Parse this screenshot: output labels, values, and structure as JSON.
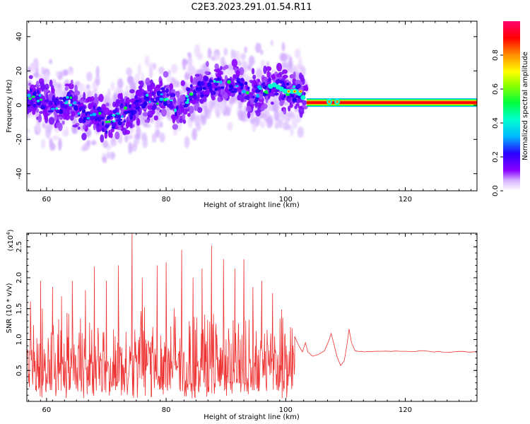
{
  "title": "C2E3.2023.291.01.54.R11",
  "chart_data": [
    {
      "type": "heatmap",
      "xlabel": "Height of straight line (km)",
      "ylabel": "Frequency (Hz)",
      "xlim": [
        56.7,
        132
      ],
      "ylim": [
        -50,
        49
      ],
      "xticks": [
        60,
        80,
        100,
        120
      ],
      "yticks": [
        -40,
        -20,
        0,
        20,
        40
      ],
      "colorbar": {
        "label": "Normalized spectral amplitude",
        "range": [
          0.0,
          1.0
        ],
        "ticks": [
          "0.0",
          "0.2",
          "0.4",
          "0.6",
          "0.8"
        ],
        "colors": [
          "#ffffff",
          "#c07cff",
          "#8a00ff",
          "#2a00ff",
          "#00b8ff",
          "#00ffd0",
          "#00ff3c",
          "#c8ff00",
          "#ffff00",
          "#ff9000",
          "#ff0000",
          "#ff0070"
        ]
      },
      "ridge": [
        {
          "km": 57,
          "hz": 5
        },
        {
          "km": 60,
          "hz": 2
        },
        {
          "km": 62,
          "hz": -2
        },
        {
          "km": 64,
          "hz": 3
        },
        {
          "km": 66,
          "hz": -6
        },
        {
          "km": 68,
          "hz": -4
        },
        {
          "km": 70,
          "hz": -12
        },
        {
          "km": 72,
          "hz": -6
        },
        {
          "km": 74,
          "hz": -3
        },
        {
          "km": 76,
          "hz": 4
        },
        {
          "km": 78,
          "hz": 2
        },
        {
          "km": 80,
          "hz": 6
        },
        {
          "km": 82,
          "hz": -2
        },
        {
          "km": 84,
          "hz": 6
        },
        {
          "km": 86,
          "hz": 10
        },
        {
          "km": 88,
          "hz": 12
        },
        {
          "km": 90,
          "hz": 10
        },
        {
          "km": 92,
          "hz": 13
        },
        {
          "km": 94,
          "hz": 6
        },
        {
          "km": 96,
          "hz": 8
        },
        {
          "km": 98,
          "hz": 12
        },
        {
          "km": 100,
          "hz": 8
        },
        {
          "km": 102,
          "hz": 8
        },
        {
          "km": 103.5,
          "hz": 2
        },
        {
          "km": 107,
          "hz": 2
        },
        {
          "km": 108.5,
          "hz": 2
        },
        {
          "km": 110,
          "hz": 1
        },
        {
          "km": 132,
          "hz": 1
        }
      ],
      "stable_band": {
        "from_km": 103.5,
        "to_km": 132,
        "center_hz": 1.5,
        "halfwidth_hz": 2.5
      }
    },
    {
      "type": "line",
      "xlabel": "Height of straight line (km)",
      "ylabel": "SNR (10 * v/v)",
      "y_multiplier": "(x10",
      "y_multiplier_exp": "4",
      "y_multiplier_close": ")",
      "xlim": [
        56.7,
        132
      ],
      "ylim": [
        0,
        2.72
      ],
      "xticks": [
        60,
        80,
        100,
        120
      ],
      "yticks": [
        0.5,
        1.0,
        1.5,
        2.0,
        2.5
      ],
      "series": [
        {
          "color": "#ee3333",
          "noisy_region": {
            "from_km": 56.7,
            "to_km": 101.5,
            "typical_min": 0.15,
            "typical_max": 1.6
          },
          "peaks": [
            {
              "x": 57.3,
              "y": 1.62
            },
            {
              "x": 59.0,
              "y": 1.95
            },
            {
              "x": 61.0,
              "y": 1.85
            },
            {
              "x": 62.5,
              "y": 1.7
            },
            {
              "x": 64.3,
              "y": 1.95
            },
            {
              "x": 66.5,
              "y": 1.8
            },
            {
              "x": 68.0,
              "y": 2.18
            },
            {
              "x": 70.0,
              "y": 1.95
            },
            {
              "x": 72.0,
              "y": 2.2
            },
            {
              "x": 74.3,
              "y": 2.72
            },
            {
              "x": 76.0,
              "y": 2.0
            },
            {
              "x": 78.5,
              "y": 2.2
            },
            {
              "x": 80.0,
              "y": 2.25
            },
            {
              "x": 82.6,
              "y": 2.45
            },
            {
              "x": 84.5,
              "y": 2.0
            },
            {
              "x": 86.0,
              "y": 2.15
            },
            {
              "x": 87.6,
              "y": 2.52
            },
            {
              "x": 89.6,
              "y": 2.3
            },
            {
              "x": 91.5,
              "y": 2.15
            },
            {
              "x": 93.0,
              "y": 2.3
            },
            {
              "x": 94.5,
              "y": 1.85
            },
            {
              "x": 96.0,
              "y": 1.95
            },
            {
              "x": 97.8,
              "y": 1.75
            },
            {
              "x": 99.5,
              "y": 1.35
            },
            {
              "x": 100.8,
              "y": 1.2
            }
          ],
          "smooth_points": [
            [
              101.5,
              1.05
            ],
            [
              102.2,
              0.9
            ],
            [
              102.8,
              0.8
            ],
            [
              103.3,
              0.95
            ],
            [
              103.7,
              0.8
            ],
            [
              104.5,
              0.73
            ],
            [
              105.5,
              0.76
            ],
            [
              106.5,
              0.82
            ],
            [
              107.2,
              0.98
            ],
            [
              107.6,
              1.1
            ],
            [
              108.0,
              0.95
            ],
            [
              108.6,
              0.72
            ],
            [
              109.2,
              0.58
            ],
            [
              109.8,
              0.66
            ],
            [
              110.3,
              0.95
            ],
            [
              110.6,
              1.17
            ],
            [
              111.0,
              0.95
            ],
            [
              111.6,
              0.82
            ],
            [
              113.0,
              0.8
            ],
            [
              116.0,
              0.81
            ],
            [
              120.0,
              0.81
            ],
            [
              124.0,
              0.81
            ],
            [
              128.0,
              0.8
            ],
            [
              132.0,
              0.81
            ]
          ]
        }
      ]
    }
  ]
}
